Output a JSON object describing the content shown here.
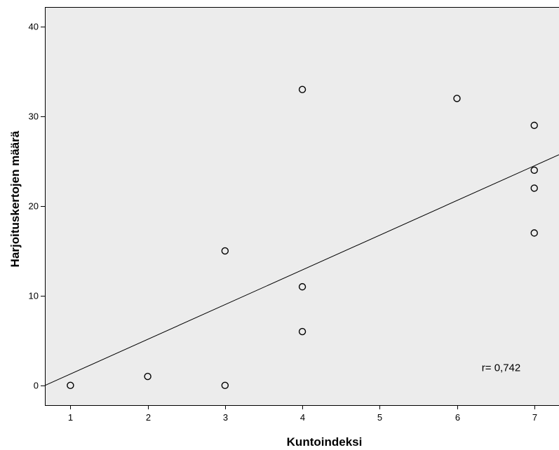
{
  "chart_data": {
    "type": "scatter",
    "xlabel": "Kuntoindeksi",
    "ylabel": "Harjoituskertojen määrä",
    "xlim": [
      0.67,
      7.32
    ],
    "ylim": [
      -2.2,
      42.2
    ],
    "x_ticks": [
      "1",
      "2",
      "3",
      "4",
      "5",
      "6",
      "7"
    ],
    "y_ticks": [
      "0",
      "10",
      "20",
      "30",
      "40"
    ],
    "points": [
      {
        "x": 1,
        "y": 0
      },
      {
        "x": 2,
        "y": 1
      },
      {
        "x": 3,
        "y": 0
      },
      {
        "x": 3,
        "y": 15
      },
      {
        "x": 4,
        "y": 33
      },
      {
        "x": 4,
        "y": 11
      },
      {
        "x": 4,
        "y": 6
      },
      {
        "x": 6,
        "y": 32
      },
      {
        "x": 7,
        "y": 29
      },
      {
        "x": 7,
        "y": 24
      },
      {
        "x": 7,
        "y": 22
      },
      {
        "x": 7,
        "y": 17
      }
    ],
    "fit_line": {
      "slope": 3.87,
      "intercept": -2.6
    },
    "annotation": "r= 0,742",
    "annotation_pos": {
      "x": 6.32,
      "y": 2
    },
    "plot_background": "#ececec",
    "marker_color": "#000000",
    "grid": false,
    "legend": "none"
  }
}
